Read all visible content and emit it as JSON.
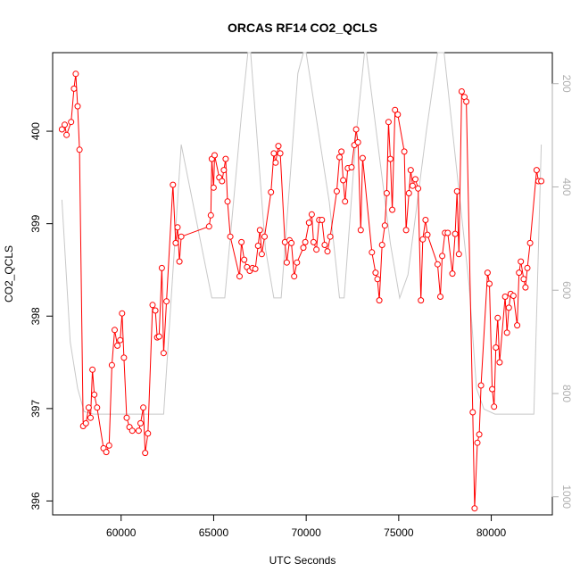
{
  "chart_data": {
    "type": "line",
    "title": "ORCAS RF14 CO2_QCLS",
    "xlabel": "UTC Seconds",
    "ylabel": "CO2_QCLS",
    "xlim": [
      56300,
      83300
    ],
    "ylim": [
      395.85,
      400.85
    ],
    "xticks": [
      60000,
      65000,
      70000,
      75000,
      80000
    ],
    "yticks": [
      396,
      397,
      398,
      399,
      400
    ],
    "y2lim": [
      1035,
      140
    ],
    "y2ticks": [
      200,
      400,
      600,
      800,
      1000
    ],
    "grid": false,
    "series": [
      {
        "color": "#ff0000",
        "style": "line+open-circles",
        "points": [
          [
            56800,
            400.02
          ],
          [
            56950,
            400.07
          ],
          [
            57050,
            399.96
          ],
          [
            57300,
            400.1
          ],
          [
            57450,
            400.46
          ],
          [
            57550,
            400.62
          ],
          [
            57650,
            400.27
          ],
          [
            57750,
            399.8
          ],
          [
            57950,
            396.81
          ],
          [
            58100,
            396.84
          ],
          [
            58250,
            397.01
          ],
          [
            58350,
            396.9
          ],
          [
            58450,
            397.42
          ],
          [
            58550,
            397.15
          ],
          [
            58700,
            397.01
          ],
          [
            59050,
            396.57
          ],
          [
            59200,
            396.53
          ],
          [
            59350,
            396.6
          ],
          [
            59500,
            397.47
          ],
          [
            59650,
            397.85
          ],
          [
            59800,
            397.68
          ],
          [
            59950,
            397.74
          ],
          [
            60050,
            398.03
          ],
          [
            60150,
            397.55
          ],
          [
            60300,
            396.9
          ],
          [
            60450,
            396.8
          ],
          [
            60600,
            396.76
          ],
          [
            60950,
            396.76
          ],
          [
            61050,
            396.84
          ],
          [
            61200,
            397.01
          ],
          [
            61300,
            396.52
          ],
          [
            61450,
            396.73
          ],
          [
            61700,
            398.12
          ],
          [
            61850,
            398.06
          ],
          [
            61950,
            397.77
          ],
          [
            62050,
            397.78
          ],
          [
            62200,
            398.52
          ],
          [
            62300,
            397.6
          ],
          [
            62450,
            398.16
          ],
          [
            62800,
            399.42
          ],
          [
            62950,
            398.79
          ],
          [
            63050,
            398.96
          ],
          [
            63150,
            398.59
          ],
          [
            63250,
            398.86
          ],
          [
            64750,
            398.97
          ],
          [
            64850,
            399.09
          ],
          [
            64900,
            399.7
          ],
          [
            65000,
            399.39
          ],
          [
            65050,
            399.74
          ],
          [
            65300,
            399.5
          ],
          [
            65450,
            399.46
          ],
          [
            65550,
            399.58
          ],
          [
            65650,
            399.7
          ],
          [
            65750,
            399.24
          ],
          [
            65900,
            398.86
          ],
          [
            66400,
            398.43
          ],
          [
            66500,
            398.8
          ],
          [
            66650,
            398.61
          ],
          [
            66800,
            398.53
          ],
          [
            66950,
            398.49
          ],
          [
            67100,
            398.52
          ],
          [
            67250,
            398.51
          ],
          [
            67400,
            398.76
          ],
          [
            67500,
            398.93
          ],
          [
            67600,
            398.67
          ],
          [
            67750,
            398.86
          ],
          [
            68100,
            399.34
          ],
          [
            68250,
            399.76
          ],
          [
            68350,
            399.66
          ],
          [
            68500,
            399.84
          ],
          [
            68600,
            399.76
          ],
          [
            68850,
            398.8
          ],
          [
            68950,
            398.58
          ],
          [
            69100,
            398.82
          ],
          [
            69200,
            398.79
          ],
          [
            69350,
            398.43
          ],
          [
            69500,
            398.58
          ],
          [
            69850,
            398.74
          ],
          [
            69950,
            398.8
          ],
          [
            70150,
            399.01
          ],
          [
            70300,
            399.1
          ],
          [
            70400,
            398.8
          ],
          [
            70550,
            398.72
          ],
          [
            70700,
            399.04
          ],
          [
            70850,
            399.04
          ],
          [
            71000,
            398.77
          ],
          [
            71150,
            398.7
          ],
          [
            71300,
            398.86
          ],
          [
            71650,
            399.35
          ],
          [
            71800,
            399.72
          ],
          [
            71900,
            399.78
          ],
          [
            72000,
            399.47
          ],
          [
            72100,
            399.24
          ],
          [
            72250,
            399.6
          ],
          [
            72450,
            399.61
          ],
          [
            72600,
            399.85
          ],
          [
            72700,
            400.02
          ],
          [
            72800,
            399.88
          ],
          [
            72950,
            398.93
          ],
          [
            73050,
            399.71
          ],
          [
            73550,
            398.69
          ],
          [
            73750,
            398.47
          ],
          [
            73850,
            398.4
          ],
          [
            73950,
            398.17
          ],
          [
            74100,
            398.77
          ],
          [
            74250,
            398.98
          ],
          [
            74350,
            399.33
          ],
          [
            74450,
            400.1
          ],
          [
            74550,
            399.7
          ],
          [
            74650,
            399.15
          ],
          [
            74800,
            400.23
          ],
          [
            74950,
            400.18
          ],
          [
            75300,
            399.78
          ],
          [
            75400,
            398.93
          ],
          [
            75550,
            399.33
          ],
          [
            75650,
            399.58
          ],
          [
            75750,
            399.41
          ],
          [
            75900,
            399.48
          ],
          [
            76050,
            399.38
          ],
          [
            76200,
            398.17
          ],
          [
            76300,
            398.83
          ],
          [
            76450,
            399.04
          ],
          [
            76550,
            398.88
          ],
          [
            77100,
            398.56
          ],
          [
            77250,
            398.21
          ],
          [
            77350,
            398.65
          ],
          [
            77500,
            398.9
          ],
          [
            77650,
            398.9
          ],
          [
            77900,
            398.46
          ],
          [
            78050,
            398.89
          ],
          [
            78150,
            399.35
          ],
          [
            78250,
            398.67
          ],
          [
            78400,
            400.43
          ],
          [
            78550,
            400.37
          ],
          [
            78650,
            400.32
          ],
          [
            79000,
            396.96
          ],
          [
            79100,
            395.92
          ],
          [
            79250,
            396.63
          ],
          [
            79350,
            396.72
          ],
          [
            79450,
            397.25
          ],
          [
            79800,
            398.47
          ],
          [
            79900,
            398.35
          ],
          [
            80050,
            397.21
          ],
          [
            80150,
            397.02
          ],
          [
            80250,
            397.66
          ],
          [
            80350,
            397.98
          ],
          [
            80450,
            397.5
          ],
          [
            80750,
            398.21
          ],
          [
            80850,
            397.82
          ],
          [
            80950,
            398.09
          ],
          [
            81050,
            398.24
          ],
          [
            81200,
            398.22
          ],
          [
            81400,
            397.9
          ],
          [
            81500,
            398.47
          ],
          [
            81600,
            398.59
          ],
          [
            81750,
            398.4
          ],
          [
            81850,
            398.31
          ],
          [
            81950,
            398.52
          ],
          [
            82100,
            398.79
          ],
          [
            82450,
            399.58
          ],
          [
            82550,
            399.46
          ],
          [
            82700,
            399.46
          ]
        ]
      },
      {
        "color": "#c8c8c8",
        "style": "line",
        "axis": "right",
        "points": [
          [
            56800,
            425
          ],
          [
            57250,
            700
          ],
          [
            57650,
            790
          ],
          [
            58000,
            835
          ],
          [
            58500,
            840
          ],
          [
            59000,
            840
          ],
          [
            60000,
            840
          ],
          [
            61000,
            840
          ],
          [
            62000,
            840
          ],
          [
            62300,
            840
          ],
          [
            63250,
            318
          ],
          [
            64900,
            615
          ],
          [
            65600,
            615
          ],
          [
            66500,
            260
          ],
          [
            66850,
            70
          ],
          [
            67000,
            70
          ],
          [
            67800,
            520
          ],
          [
            68250,
            615
          ],
          [
            68650,
            615
          ],
          [
            69550,
            180
          ],
          [
            69850,
            70
          ],
          [
            70000,
            70
          ],
          [
            71250,
            430
          ],
          [
            71800,
            615
          ],
          [
            72050,
            615
          ],
          [
            72700,
            300
          ],
          [
            73150,
            70
          ],
          [
            73250,
            70
          ],
          [
            74550,
            510
          ],
          [
            75050,
            615
          ],
          [
            75500,
            570
          ],
          [
            76500,
            290
          ],
          [
            77100,
            70
          ],
          [
            77450,
            70
          ],
          [
            78800,
            590
          ],
          [
            79200,
            790
          ],
          [
            79600,
            830
          ],
          [
            80200,
            840
          ],
          [
            81000,
            840
          ],
          [
            82300,
            840
          ],
          [
            82700,
            318
          ]
        ]
      }
    ]
  }
}
